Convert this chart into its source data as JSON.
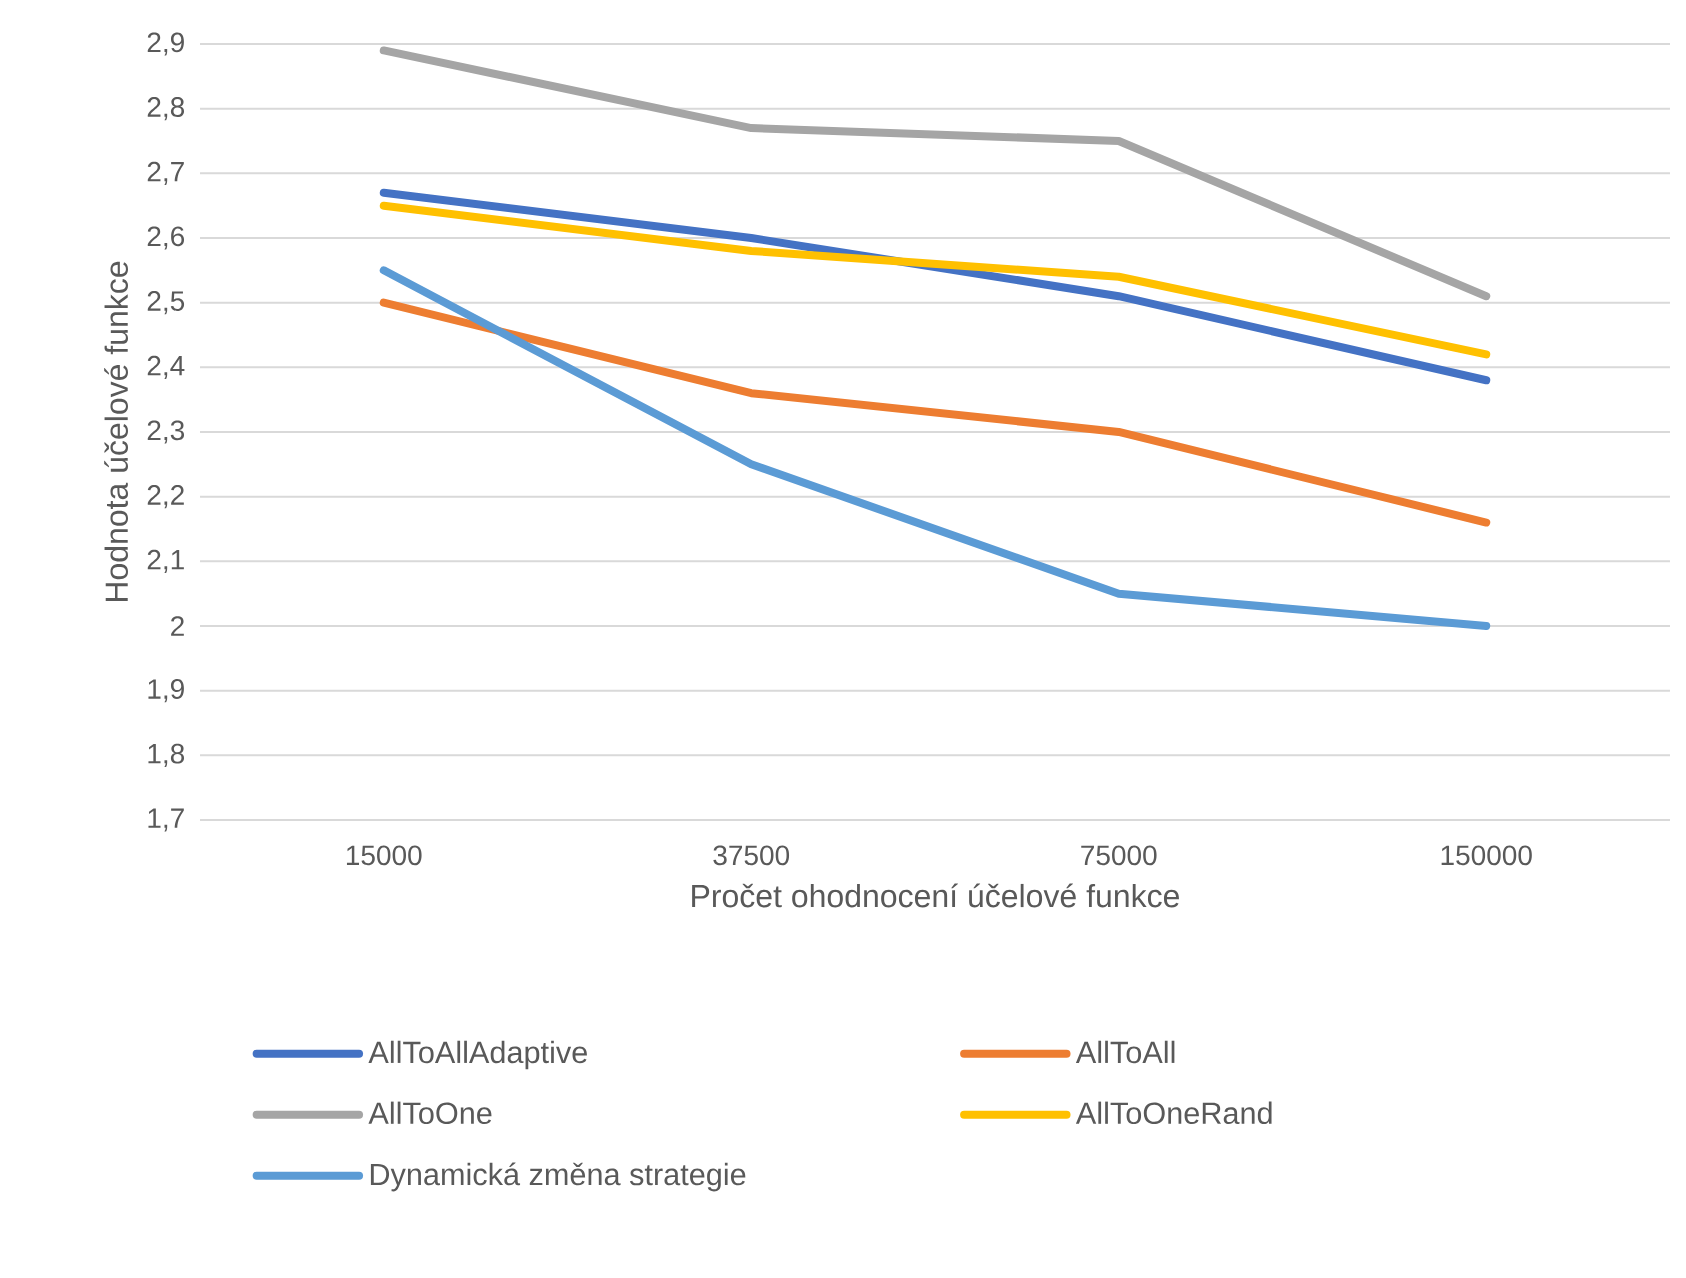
{
  "chart_data": {
    "type": "line",
    "xlabel": "Pročet ohodnocení účelové funkce",
    "ylabel": "Hodnota účelové funkce",
    "categories": [
      "15000",
      "37500",
      "75000",
      "150000"
    ],
    "series": [
      {
        "name": "AllToAllAdaptive",
        "color": "#4472c4",
        "values": [
          2.67,
          2.6,
          2.51,
          2.38
        ]
      },
      {
        "name": "AllToAll",
        "color": "#ed7d31",
        "values": [
          2.5,
          2.36,
          2.3,
          2.16
        ]
      },
      {
        "name": "AllToOne",
        "color": "#a5a5a5",
        "values": [
          2.89,
          2.77,
          2.75,
          2.51
        ]
      },
      {
        "name": "AllToOneRand",
        "color": "#ffc000",
        "values": [
          2.65,
          2.58,
          2.54,
          2.42
        ]
      },
      {
        "name": "Dynamická změna strategie",
        "color": "#5b9bd5",
        "values": [
          2.55,
          2.25,
          2.05,
          2.0
        ]
      }
    ],
    "ylim": [
      1.7,
      2.9
    ],
    "yticks": [
      {
        "value": 1.7,
        "label": "1,7"
      },
      {
        "value": 1.8,
        "label": "1,8"
      },
      {
        "value": 1.9,
        "label": "1,9"
      },
      {
        "value": 2,
        "label": "2"
      },
      {
        "value": 2.1,
        "label": "2,1"
      },
      {
        "value": 2.2,
        "label": "2,2"
      },
      {
        "value": 2.3,
        "label": "2,3"
      },
      {
        "value": 2.4,
        "label": "2,4"
      },
      {
        "value": 2.5,
        "label": "2,5"
      },
      {
        "value": 2.6,
        "label": "2,6"
      },
      {
        "value": 2.7,
        "label": "2,7"
      },
      {
        "value": 2.8,
        "label": "2,8"
      },
      {
        "value": 2.9,
        "label": "2,9"
      }
    ],
    "grid": "y",
    "legend": "bottom",
    "marker": "none",
    "line_style": "solid"
  }
}
